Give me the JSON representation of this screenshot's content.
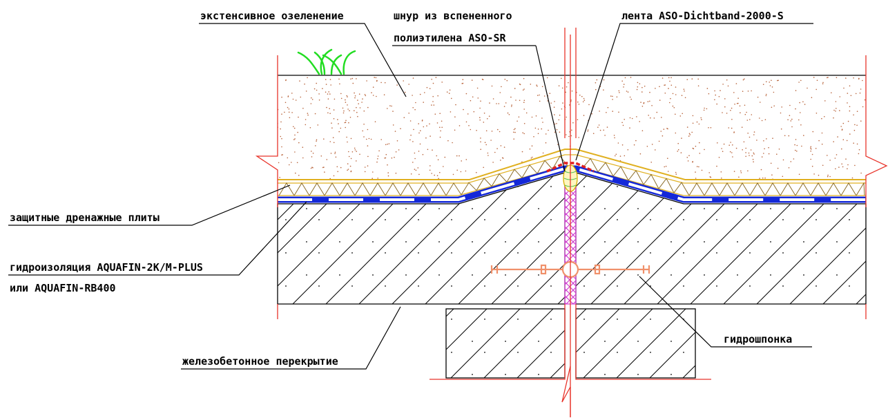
{
  "labels": {
    "extensive_greening": "экстенсивное озеленение",
    "cord_line1": "шнур из вспененного",
    "cord_line2": "полиэтилена ASO-SR",
    "tape": "лента ASO-Dichtband-2000-S",
    "drainage_plates": "защитные дренажные плиты",
    "waterproofing_line1": "гидроизоляция AQUAFIN-2K/M-PLUS",
    "waterproofing_line2": "или AQUAFIN-RB400",
    "waterstop": "гидрошпонка",
    "slab": "железобетонное перекрытие"
  },
  "colors": {
    "section_line": "#e8332a",
    "membrane": "#1428d8",
    "drainage": "#e0b020",
    "soil_dots": "#b8633a",
    "joint_fill": "#d040d0",
    "waterstop": "#f0906a",
    "grass": "#22dd22"
  }
}
